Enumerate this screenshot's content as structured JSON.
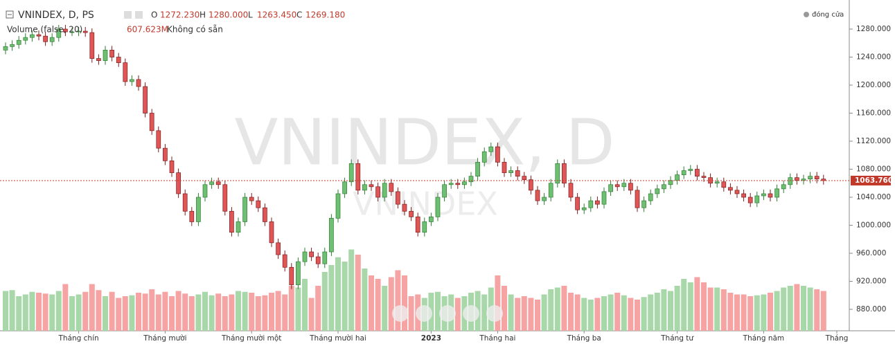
{
  "chart_data": {
    "type": "candlestick",
    "title": "VNINDEX, D, PS",
    "ohlc_legend": [
      {
        "name": "O",
        "value": "1272.230"
      },
      {
        "name": "H",
        "value": "1280.000"
      },
      {
        "name": "L",
        "value": "1263.450"
      },
      {
        "name": "C",
        "value": "1269.180"
      }
    ],
    "volume_legend": {
      "name": "Volume (false, 20)",
      "value": "607.623M",
      "note": "Không có sẵn"
    },
    "watermark": "VNINDEX, D",
    "watermark_small": "VNINDEX",
    "legend_label": "đóng cửa",
    "price_line": {
      "value": 1063.76,
      "label": "1063.760"
    },
    "categories": [
      null,
      null,
      null,
      null,
      null,
      null,
      null,
      null,
      null,
      null,
      null,
      "Tháng chín",
      null,
      null,
      null,
      null,
      null,
      null,
      null,
      null,
      null,
      null,
      null,
      null,
      "Tháng mười",
      null,
      null,
      null,
      null,
      null,
      null,
      null,
      null,
      null,
      null,
      null,
      null,
      "Tháng mười một",
      null,
      null,
      null,
      null,
      null,
      null,
      null,
      null,
      null,
      null,
      null,
      null,
      "Tháng mười hai",
      null,
      null,
      null,
      null,
      null,
      null,
      null,
      null,
      null,
      null,
      null,
      null,
      null,
      "2023",
      null,
      null,
      null,
      null,
      null,
      null,
      null,
      null,
      null,
      "Tháng hai",
      null,
      null,
      null,
      null,
      null,
      null,
      null,
      null,
      null,
      null,
      null,
      null,
      "Tháng ba",
      null,
      null,
      null,
      null,
      null,
      null,
      null,
      null,
      null,
      null,
      null,
      null,
      null,
      "Tháng tư",
      null,
      null,
      null,
      null,
      null,
      null,
      null,
      null,
      null,
      null,
      null,
      null,
      "Tháng năm",
      null,
      null,
      null,
      null,
      null,
      null,
      null,
      null,
      null,
      null,
      "Tháng"
    ],
    "open": [
      1250,
      1255,
      1258,
      1264,
      1268,
      1272,
      1270,
      1262,
      1268,
      1280,
      1276,
      1276,
      1277,
      1275,
      1238,
      1235,
      1250,
      1240,
      1232,
      1205,
      1208,
      1198,
      1160,
      1135,
      1110,
      1092,
      1075,
      1045,
      1020,
      1005,
      1040,
      1058,
      1062,
      1058,
      1020,
      990,
      1005,
      1040,
      1035,
      1025,
      1005,
      975,
      958,
      940,
      915,
      948,
      962,
      955,
      945,
      962,
      1010,
      1045,
      1062,
      1088,
      1050,
      1058,
      1055,
      1040,
      1060,
      1048,
      1030,
      1020,
      1012,
      990,
      1005,
      1012,
      1040,
      1058,
      1060,
      1058,
      1062,
      1070,
      1090,
      1105,
      1112,
      1090,
      1075,
      1078,
      1070,
      1065,
      1050,
      1035,
      1040,
      1060,
      1088,
      1060,
      1040,
      1022,
      1025,
      1035,
      1030,
      1048,
      1058,
      1055,
      1060,
      1050,
      1025,
      1035,
      1045,
      1052,
      1058,
      1064,
      1072,
      1078,
      1080,
      1070,
      1068,
      1060,
      1062,
      1054,
      1050,
      1045,
      1040,
      1032,
      1042,
      1045,
      1040,
      1052,
      1058,
      1068,
      1064,
      1066,
      1070,
      1066,
      null,
      null
    ],
    "high": [
      1261,
      1264,
      1270,
      1274,
      1278,
      1278,
      1276,
      1274,
      1286,
      1286,
      1282,
      1283,
      1283,
      1281,
      1244,
      1256,
      1256,
      1246,
      1238,
      1214,
      1214,
      1204,
      1166,
      1141,
      1116,
      1098,
      1081,
      1051,
      1026,
      1046,
      1064,
      1068,
      1068,
      1064,
      1026,
      1011,
      1046,
      1046,
      1041,
      1031,
      1011,
      981,
      964,
      946,
      954,
      968,
      968,
      961,
      968,
      1016,
      1051,
      1068,
      1094,
      1094,
      1064,
      1064,
      1061,
      1066,
      1066,
      1054,
      1036,
      1026,
      1018,
      1011,
      1018,
      1046,
      1064,
      1066,
      1066,
      1068,
      1076,
      1096,
      1111,
      1118,
      1118,
      1096,
      1084,
      1084,
      1076,
      1071,
      1056,
      1046,
      1066,
      1094,
      1094,
      1066,
      1046,
      1031,
      1041,
      1041,
      1054,
      1064,
      1064,
      1066,
      1066,
      1056,
      1041,
      1051,
      1058,
      1064,
      1070,
      1078,
      1084,
      1086,
      1086,
      1076,
      1074,
      1068,
      1068,
      1060,
      1056,
      1051,
      1046,
      1048,
      1051,
      1051,
      1058,
      1064,
      1074,
      1074,
      1072,
      1076,
      1076,
      1072,
      null,
      null
    ],
    "low": [
      1244,
      1249,
      1252,
      1258,
      1262,
      1264,
      1256,
      1256,
      1262,
      1270,
      1270,
      1270,
      1269,
      1232,
      1229,
      1229,
      1234,
      1226,
      1199,
      1199,
      1192,
      1154,
      1129,
      1104,
      1086,
      1069,
      1039,
      1014,
      999,
      999,
      1034,
      1052,
      1052,
      1014,
      984,
      984,
      999,
      1029,
      1019,
      999,
      969,
      952,
      934,
      909,
      909,
      942,
      949,
      939,
      939,
      956,
      1004,
      1039,
      1056,
      1044,
      1044,
      1049,
      1034,
      1034,
      1042,
      1024,
      1014,
      1006,
      984,
      984,
      999,
      1006,
      1034,
      1052,
      1052,
      1052,
      1056,
      1064,
      1084,
      1099,
      1084,
      1069,
      1069,
      1064,
      1059,
      1044,
      1029,
      1029,
      1034,
      1054,
      1054,
      1034,
      1016,
      1016,
      1019,
      1024,
      1024,
      1042,
      1049,
      1049,
      1044,
      1019,
      1019,
      1029,
      1039,
      1046,
      1052,
      1058,
      1066,
      1072,
      1064,
      1062,
      1054,
      1054,
      1048,
      1044,
      1039,
      1034,
      1026,
      1026,
      1036,
      1034,
      1034,
      1046,
      1052,
      1058,
      1058,
      1060,
      1060,
      1058,
      null,
      null
    ],
    "close": [
      1255,
      1258,
      1264,
      1268,
      1272,
      1270,
      1262,
      1268,
      1280,
      1276,
      1276,
      1277,
      1275,
      1238,
      1235,
      1250,
      1240,
      1232,
      1205,
      1208,
      1198,
      1160,
      1135,
      1110,
      1092,
      1075,
      1045,
      1020,
      1005,
      1040,
      1058,
      1062,
      1058,
      1020,
      990,
      1005,
      1040,
      1035,
      1025,
      1005,
      975,
      958,
      940,
      915,
      948,
      962,
      955,
      945,
      962,
      1010,
      1045,
      1062,
      1088,
      1050,
      1058,
      1055,
      1040,
      1060,
      1048,
      1030,
      1020,
      1012,
      990,
      1005,
      1012,
      1040,
      1058,
      1060,
      1058,
      1062,
      1070,
      1090,
      1105,
      1112,
      1090,
      1075,
      1078,
      1070,
      1065,
      1050,
      1035,
      1040,
      1060,
      1088,
      1060,
      1040,
      1022,
      1025,
      1035,
      1030,
      1048,
      1058,
      1055,
      1060,
      1050,
      1025,
      1035,
      1045,
      1052,
      1058,
      1064,
      1072,
      1078,
      1080,
      1070,
      1068,
      1060,
      1062,
      1054,
      1050,
      1045,
      1040,
      1032,
      1042,
      1045,
      1040,
      1052,
      1058,
      1068,
      1064,
      1066,
      1070,
      1066,
      1063.76,
      null,
      null
    ],
    "volume": [
      460,
      470,
      400,
      420,
      450,
      440,
      430,
      420,
      460,
      540,
      400,
      420,
      450,
      540,
      470,
      400,
      450,
      380,
      400,
      410,
      440,
      430,
      480,
      420,
      450,
      400,
      460,
      430,
      400,
      420,
      450,
      410,
      430,
      400,
      420,
      460,
      450,
      440,
      400,
      410,
      440,
      460,
      420,
      520,
      500,
      600,
      380,
      520,
      680,
      760,
      850,
      800,
      940,
      880,
      720,
      640,
      600,
      520,
      620,
      700,
      640,
      400,
      420,
      380,
      440,
      450,
      400,
      420,
      380,
      400,
      440,
      460,
      420,
      500,
      640,
      520,
      420,
      380,
      400,
      380,
      360,
      420,
      480,
      500,
      520,
      440,
      420,
      380,
      360,
      380,
      400,
      420,
      440,
      410,
      380,
      360,
      390,
      420,
      440,
      480,
      460,
      520,
      600,
      560,
      620,
      560,
      500,
      500,
      480,
      440,
      420,
      420,
      400,
      410,
      420,
      440,
      460,
      500,
      520,
      540,
      520,
      500,
      480,
      460,
      null,
      null
    ],
    "ylim": [
      849.4,
      1321.5
    ],
    "yticks": [
      {
        "value": 1280,
        "label": "1280.000"
      },
      {
        "value": 1240,
        "label": "1240.000"
      },
      {
        "value": 1200,
        "label": "1200.000"
      },
      {
        "value": 1160,
        "label": "1160.000"
      },
      {
        "value": 1120,
        "label": "1120.000"
      },
      {
        "value": 1080,
        "label": "1080.000"
      },
      {
        "value": 1040,
        "label": "1040.000"
      },
      {
        "value": 1000,
        "label": "1000.000"
      },
      {
        "value": 960,
        "label": "960.000"
      },
      {
        "value": 920,
        "label": "920.000"
      },
      {
        "value": 880,
        "label": "880.000"
      }
    ],
    "volume_lim": [
      0,
      1000
    ],
    "up_color": "#6fbf73",
    "down_color": "#e05656",
    "up_volume_color": "#a8d8a9",
    "down_volume_color": "#f5a3a3",
    "price_line_color": "#c0392b"
  }
}
